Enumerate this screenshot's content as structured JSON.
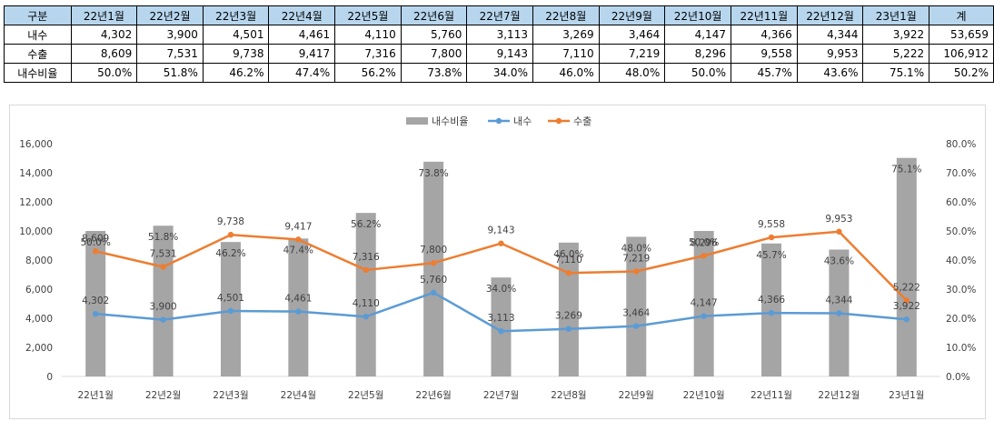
{
  "table": {
    "header": [
      "구분",
      "22년1월",
      "22년2월",
      "22년3월",
      "22년4월",
      "22년5월",
      "22년6월",
      "22년7월",
      "22년8월",
      "22년9월",
      "22년10월",
      "22년11월",
      "22년12월",
      "23년1월",
      "계"
    ],
    "rows": [
      {
        "label": "내수",
        "cells": [
          "4,302",
          "3,900",
          "4,501",
          "4,461",
          "4,110",
          "5,760",
          "3,113",
          "3,269",
          "3,464",
          "4,147",
          "4,366",
          "4,344",
          "3,922",
          "53,659"
        ]
      },
      {
        "label": "수출",
        "cells": [
          "8,609",
          "7,531",
          "9,738",
          "9,417",
          "7,316",
          "7,800",
          "9,143",
          "7,110",
          "7,219",
          "8,296",
          "9,558",
          "9,953",
          "5,222",
          "106,912"
        ]
      },
      {
        "label": "내수비율",
        "cells": [
          "50.0%",
          "51.8%",
          "46.2%",
          "47.4%",
          "56.2%",
          "73.8%",
          "34.0%",
          "46.0%",
          "48.0%",
          "50.0%",
          "45.7%",
          "43.6%",
          "75.1%",
          "50.2%"
        ]
      }
    ]
  },
  "chart_data": {
    "type": "bar+line",
    "categories": [
      "22년1월",
      "22년2월",
      "22년3월",
      "22년4월",
      "22년5월",
      "22년6월",
      "22년7월",
      "22년8월",
      "22년9월",
      "22년10월",
      "22년11월",
      "22년12월",
      "23년1월"
    ],
    "series": [
      {
        "name": "내수비율",
        "kind": "bar",
        "axis": "right",
        "color": "#a5a5a5",
        "values": [
          50.0,
          51.8,
          46.2,
          47.4,
          56.2,
          73.8,
          34.0,
          46.0,
          48.0,
          50.0,
          45.7,
          43.6,
          75.1
        ],
        "labels": [
          "50.0%",
          "51.8%",
          "46.2%",
          "47.4%",
          "56.2%",
          "73.8%",
          "34.0%",
          "46.0%",
          "48.0%",
          "50.0%",
          "45.7%",
          "43.6%",
          "75.1%"
        ]
      },
      {
        "name": "내수",
        "kind": "line",
        "axis": "left",
        "color": "#5b9bd5",
        "values": [
          4302,
          3900,
          4501,
          4461,
          4110,
          5760,
          3113,
          3269,
          3464,
          4147,
          4366,
          4344,
          3922
        ],
        "labels": [
          "4,302",
          "3,900",
          "4,501",
          "4,461",
          "4,110",
          "5,760",
          "3,113",
          "3,269",
          "3,464",
          "4,147",
          "4,366",
          "4,344",
          "3,922"
        ]
      },
      {
        "name": "수출",
        "kind": "line",
        "axis": "left",
        "color": "#ed7d31",
        "values": [
          8609,
          7531,
          9738,
          9417,
          7316,
          7800,
          9143,
          7110,
          7219,
          8296,
          9558,
          9953,
          5222
        ],
        "labels": [
          "8,609",
          "7,531",
          "9,738",
          "9,417",
          "7,316",
          "7,800",
          "9,143",
          "7,110",
          "7,219",
          "8,296",
          "9,558",
          "9,953",
          "5,222"
        ]
      }
    ],
    "y_left": {
      "min": 0,
      "max": 16000,
      "step": 2000,
      "ticks": [
        "0",
        "2,000",
        "4,000",
        "6,000",
        "8,000",
        "10,000",
        "12,000",
        "14,000",
        "16,000"
      ]
    },
    "y_right": {
      "min": 0,
      "max": 80,
      "step": 10,
      "ticks": [
        "0.0%",
        "10.0%",
        "20.0%",
        "30.0%",
        "40.0%",
        "50.0%",
        "60.0%",
        "70.0%",
        "80.0%"
      ]
    },
    "legend_position": "top-center",
    "grid": false
  }
}
